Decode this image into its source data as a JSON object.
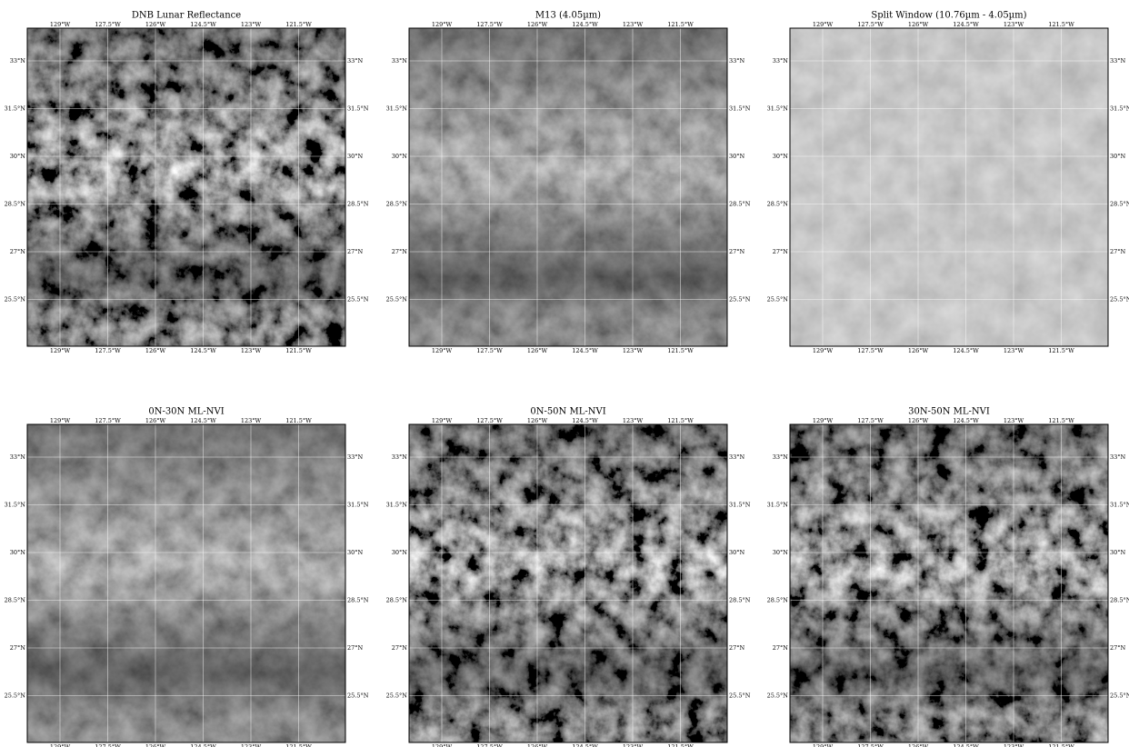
{
  "panels": [
    {
      "title": "DNB Lunar Reflectance",
      "tone": "contrast"
    },
    {
      "title": "M13 (4.05µm)",
      "tone": "mid"
    },
    {
      "title": "Split Window (10.76µm - 4.05µm)",
      "tone": "flat"
    },
    {
      "title": "0N-30N ML-NVI",
      "tone": "mid"
    },
    {
      "title": "0N-50N ML-NVI",
      "tone": "contrast"
    },
    {
      "title": "30N-50N ML-NVI",
      "tone": "contrast"
    }
  ],
  "lon_labels": [
    "129°W",
    "127.5°W",
    "126°W",
    "124.5°W",
    "123°W",
    "121.5°W"
  ],
  "lat_labels": [
    "33°N",
    "31.5°N",
    "30°N",
    "28.5°N",
    "27°N",
    "25.5°N"
  ]
}
